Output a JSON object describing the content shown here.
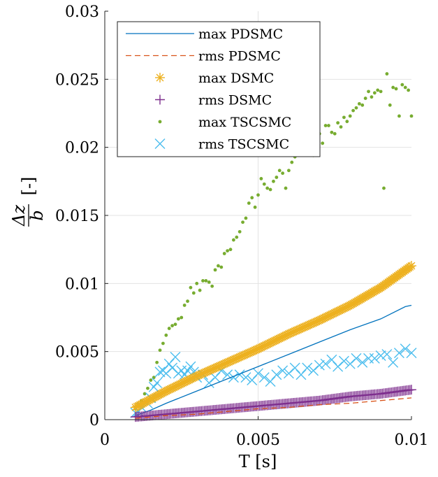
{
  "chart_data": {
    "type": "scatter",
    "title": "",
    "xlabel": "T [s]",
    "ylabel_fraction": {
      "numerator": "Δz",
      "denominator": "b"
    },
    "ylabel_unit": "[-]",
    "xlim": [
      0,
      0.01
    ],
    "ylim": [
      0,
      0.03
    ],
    "x_ticks": [
      0,
      0.005,
      0.01
    ],
    "x_tick_labels": [
      "0",
      "0.005",
      "0.01"
    ],
    "y_ticks": [
      0,
      0.005,
      0.01,
      0.015,
      0.02,
      0.025,
      0.03
    ],
    "y_tick_labels": [
      "0",
      "0.005",
      "0.01",
      "0.015",
      "0.02",
      "0.025",
      "0.03"
    ],
    "grid": true,
    "legend_position": "top-left",
    "series": [
      {
        "name": "max PDSMC",
        "style": "line",
        "color": "#0072BD",
        "x": [
          0.001,
          0.0015,
          0.002,
          0.003,
          0.004,
          0.005,
          0.006,
          0.007,
          0.008,
          0.009,
          0.0098,
          0.01
        ],
        "y": [
          0.0003,
          0.0007,
          0.0012,
          0.0021,
          0.003,
          0.0039,
          0.0048,
          0.0057,
          0.0066,
          0.0074,
          0.0083,
          0.0084
        ]
      },
      {
        "name": "rms PDSMC",
        "style": "dashed",
        "color": "#D95319",
        "x": [
          0.001,
          0.002,
          0.003,
          0.004,
          0.005,
          0.006,
          0.007,
          0.008,
          0.009,
          0.01
        ],
        "y": [
          0.0001,
          0.0003,
          0.0004,
          0.0006,
          0.0008,
          0.0009,
          0.0011,
          0.0012,
          0.0014,
          0.0016
        ]
      },
      {
        "name": "max DSMC",
        "style": "asterisk",
        "color": "#EDB120",
        "x": [
          0.001,
          0.002,
          0.003,
          0.004,
          0.005,
          0.006,
          0.007,
          0.008,
          0.009,
          0.01
        ],
        "y": [
          0.0009,
          0.0021,
          0.0032,
          0.0042,
          0.0052,
          0.0063,
          0.0073,
          0.0084,
          0.0097,
          0.0113
        ]
      },
      {
        "name": "rms DSMC",
        "style": "plus",
        "color": "#7E2F8E",
        "x": [
          0.001,
          0.002,
          0.003,
          0.004,
          0.005,
          0.006,
          0.007,
          0.008,
          0.009,
          0.01
        ],
        "y": [
          0.0002,
          0.0004,
          0.0006,
          0.0008,
          0.001,
          0.0012,
          0.0014,
          0.0017,
          0.0019,
          0.0022
        ]
      },
      {
        "name": "max TSCSMC",
        "style": "dot",
        "color": "#77AC30",
        "x": [
          0.001,
          0.0011,
          0.0012,
          0.0013,
          0.0014,
          0.0015,
          0.0016,
          0.0017,
          0.0018,
          0.0019,
          0.002,
          0.0021,
          0.0022,
          0.0023,
          0.0024,
          0.0025,
          0.0026,
          0.0027,
          0.0028,
          0.0029,
          0.003,
          0.0031,
          0.0032,
          0.0033,
          0.0034,
          0.0035,
          0.0036,
          0.0037,
          0.0038,
          0.0039,
          0.004,
          0.0041,
          0.0042,
          0.0043,
          0.0044,
          0.0045,
          0.0046,
          0.0047,
          0.0048,
          0.0049,
          0.005,
          0.0051,
          0.0052,
          0.0053,
          0.0054,
          0.0055,
          0.0056,
          0.0057,
          0.0058,
          0.0059,
          0.006,
          0.0061,
          0.0062,
          0.0063,
          0.0064,
          0.0065,
          0.0066,
          0.0067,
          0.0068,
          0.0069,
          0.007,
          0.0071,
          0.0072,
          0.0073,
          0.0074,
          0.0075,
          0.0076,
          0.0077,
          0.0078,
          0.0079,
          0.008,
          0.0081,
          0.0082,
          0.0083,
          0.0084,
          0.0085,
          0.0086,
          0.0087,
          0.0088,
          0.0089,
          0.009,
          0.0091,
          0.0092,
          0.0093,
          0.0094,
          0.0095,
          0.0096,
          0.0097,
          0.0098,
          0.0099,
          0.01
        ],
        "y": [
          0.0008,
          0.0011,
          0.0014,
          0.0019,
          0.0023,
          0.0029,
          0.0031,
          0.0042,
          0.0051,
          0.0056,
          0.0062,
          0.0067,
          0.0069,
          0.007,
          0.0074,
          0.0075,
          0.0084,
          0.0087,
          0.0097,
          0.0093,
          0.01,
          0.0095,
          0.0102,
          0.0102,
          0.0101,
          0.0098,
          0.011,
          0.0113,
          0.0112,
          0.0122,
          0.0124,
          0.0125,
          0.0132,
          0.0134,
          0.0138,
          0.0145,
          0.0148,
          0.0159,
          0.0163,
          0.0156,
          0.0165,
          0.0177,
          0.0173,
          0.017,
          0.0169,
          0.0175,
          0.0178,
          0.0183,
          0.0181,
          0.017,
          0.0183,
          0.0189,
          0.0193,
          0.0195,
          0.0196,
          0.0199,
          0.0207,
          0.0202,
          0.0194,
          0.0205,
          0.021,
          0.0203,
          0.0216,
          0.0216,
          0.0211,
          0.021,
          0.0218,
          0.0215,
          0.0222,
          0.0219,
          0.0223,
          0.0227,
          0.0229,
          0.0232,
          0.0231,
          0.0236,
          0.0241,
          0.0237,
          0.024,
          0.0242,
          0.0241,
          0.017,
          0.0254,
          0.0231,
          0.0244,
          0.0243,
          0.0223,
          0.0246,
          0.0244,
          0.0242,
          0.0223
        ]
      },
      {
        "name": "rms TSCSMC",
        "style": "cross",
        "color": "#4DBEEE",
        "x": [
          0.001,
          0.0011,
          0.0012,
          0.0014,
          0.0015,
          0.0016,
          0.0017,
          0.0018,
          0.0019,
          0.002,
          0.0021,
          0.0022,
          0.0023,
          0.0024,
          0.0025,
          0.0026,
          0.0027,
          0.0028,
          0.0029,
          0.003,
          0.0032,
          0.0034,
          0.0036,
          0.0038,
          0.004,
          0.0042,
          0.0044,
          0.0046,
          0.0048,
          0.005,
          0.0052,
          0.0054,
          0.0056,
          0.0058,
          0.006,
          0.0062,
          0.0064,
          0.0066,
          0.0068,
          0.007,
          0.0072,
          0.0074,
          0.0076,
          0.0078,
          0.008,
          0.0082,
          0.0084,
          0.0086,
          0.0088,
          0.009,
          0.0092,
          0.0094,
          0.0096,
          0.0098,
          0.01
        ],
        "y": [
          0.0005,
          0.0006,
          0.0009,
          0.0012,
          0.0016,
          0.0024,
          0.0027,
          0.0035,
          0.0036,
          0.0034,
          0.0041,
          0.0038,
          0.0046,
          0.0034,
          0.0036,
          0.0033,
          0.0036,
          0.0039,
          0.0035,
          0.0031,
          0.0033,
          0.0027,
          0.0031,
          0.0036,
          0.0033,
          0.0031,
          0.0033,
          0.0031,
          0.0029,
          0.0034,
          0.0031,
          0.0028,
          0.0033,
          0.0036,
          0.0034,
          0.0038,
          0.0033,
          0.0038,
          0.0036,
          0.004,
          0.0041,
          0.0044,
          0.0039,
          0.0043,
          0.0041,
          0.0045,
          0.0042,
          0.0045,
          0.0045,
          0.0047,
          0.0048,
          0.0042,
          0.0049,
          0.0052,
          0.0049
        ]
      }
    ]
  }
}
